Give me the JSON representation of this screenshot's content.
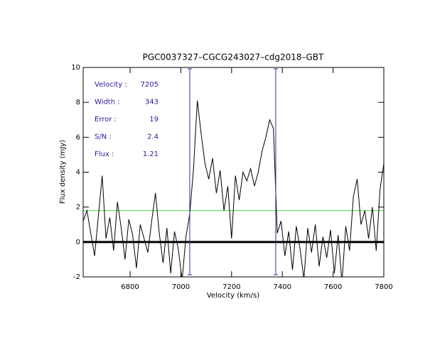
{
  "chart_data": {
    "type": "line",
    "title": "PGC0037327–CGCG243027–cdg2018–GBT",
    "xlabel": "Velocity (km/s)",
    "ylabel": "Flux density (mJy)",
    "xlim": [
      6615,
      7800
    ],
    "ylim": [
      -2,
      10
    ],
    "xticks": [
      6800,
      7000,
      7200,
      7400,
      7600,
      7800
    ],
    "yticks": [
      -2,
      0,
      2,
      4,
      6,
      8,
      10
    ],
    "x": [
      6615,
      6630,
      6645,
      6660,
      6675,
      6690,
      6705,
      6720,
      6735,
      6750,
      6765,
      6780,
      6795,
      6810,
      6825,
      6840,
      6855,
      6870,
      6885,
      6900,
      6915,
      6930,
      6945,
      6960,
      6975,
      6990,
      7005,
      7020,
      7035,
      7050,
      7065,
      7080,
      7095,
      7110,
      7125,
      7140,
      7155,
      7170,
      7185,
      7200,
      7215,
      7230,
      7245,
      7260,
      7275,
      7290,
      7305,
      7320,
      7335,
      7350,
      7365,
      7380,
      7395,
      7410,
      7425,
      7440,
      7455,
      7470,
      7485,
      7500,
      7515,
      7530,
      7545,
      7560,
      7575,
      7590,
      7605,
      7620,
      7635,
      7650,
      7665,
      7680,
      7695,
      7710,
      7725,
      7740,
      7755,
      7770,
      7785,
      7800
    ],
    "series": [
      {
        "name": "spectrum",
        "color": "#000000",
        "values": [
          1.2,
          1.8,
          0.5,
          -0.8,
          1.5,
          3.8,
          0.2,
          1.4,
          -0.5,
          2.3,
          0.8,
          -1.0,
          1.3,
          0.4,
          -1.5,
          1.0,
          0.2,
          -0.6,
          1.2,
          2.8,
          0.5,
          -1.2,
          0.8,
          -1.8,
          0.6,
          -0.4,
          -2.2,
          0.3,
          1.6,
          4.2,
          8.1,
          6.2,
          4.5,
          3.6,
          4.8,
          2.8,
          4.1,
          1.8,
          3.2,
          0.2,
          3.8,
          2.4,
          4.0,
          3.5,
          4.2,
          3.2,
          4.0,
          5.2,
          6.0,
          7.0,
          6.5,
          0.5,
          1.2,
          -0.8,
          0.6,
          -1.6,
          0.9,
          -0.4,
          -2.1,
          0.8,
          -0.6,
          1.0,
          -1.4,
          0.3,
          -0.9,
          0.7,
          -1.8,
          0.4,
          -2.3,
          0.9,
          -0.5,
          2.6,
          3.6,
          1.0,
          1.8,
          0.2,
          2.0,
          -0.5,
          3.0,
          4.5
        ]
      }
    ],
    "markers": [
      7035,
      7374
    ],
    "marker_color": "#3a2aa8",
    "threshold": 1.8,
    "threshold_color": "#44dd44",
    "annotation_color": "#2a1aa0",
    "annotations": [
      {
        "label": "Velocity :",
        "value": "7205"
      },
      {
        "label": "Width :",
        "value": "343"
      },
      {
        "label": "Error :",
        "value": "19"
      },
      {
        "label": "S/N :",
        "value": "2.4"
      },
      {
        "label": "Flux :",
        "value": "1.21"
      }
    ]
  }
}
